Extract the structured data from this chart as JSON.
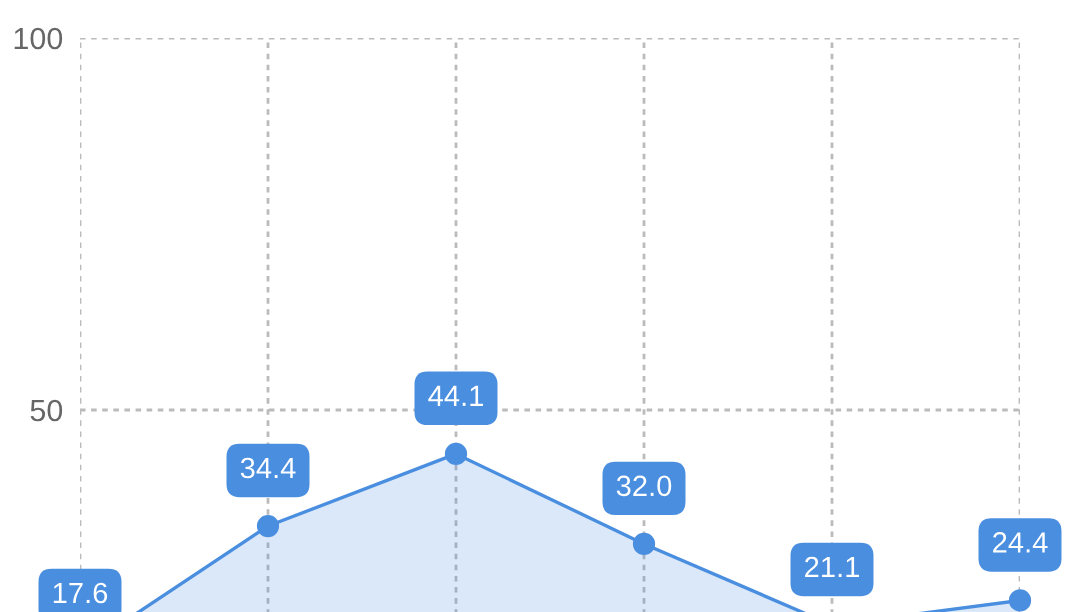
{
  "chart_data": {
    "type": "area",
    "categories": [
      null,
      null,
      null,
      null,
      null,
      null
    ],
    "series": [
      {
        "color": "#4a8ee0",
        "values": [
          17.6,
          34.4,
          44.1,
          32.0,
          21.1,
          24.4
        ],
        "value_labels": [
          "17.6",
          "34.4",
          "44.1",
          "32.0",
          "21.1",
          "24.4"
        ]
      }
    ],
    "ylim": [
      0,
      100
    ],
    "yticks": [
      50,
      100
    ],
    "grid": true,
    "marker": "circle"
  }
}
